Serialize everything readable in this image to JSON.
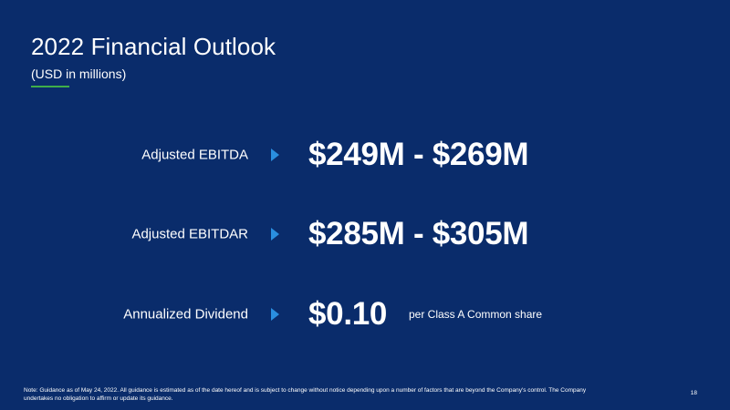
{
  "slide": {
    "title": "2022 Financial Outlook",
    "subtitle": "(USD in millions)",
    "accent_color": "#3fae49",
    "arrow_color": "#2a8fe0",
    "background_color": "#0a2c6b",
    "rows": [
      {
        "label": "Adjusted EBITDA",
        "value": "$249M - $269M",
        "suffix": ""
      },
      {
        "label": "Adjusted EBITDAR",
        "value": "$285M - $305M",
        "suffix": ""
      },
      {
        "label": "Annualized Dividend",
        "value": "$0.10",
        "suffix": "per Class A Common share"
      }
    ],
    "footnote": "Note: Guidance as of May 24, 2022. All guidance is estimated as of the date hereof and is subject to change without notice depending upon a number of factors that are beyond the Company's control. The Company undertakes no obligation to affirm or update its guidance.",
    "page_number": "18"
  }
}
